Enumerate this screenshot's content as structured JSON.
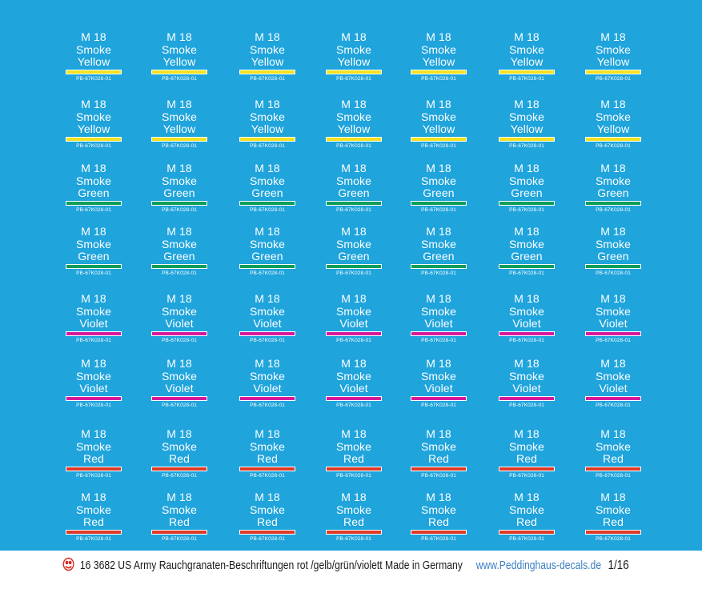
{
  "decal_sheet": {
    "background_color": "#1fa4dc",
    "text_color": "#ffffff",
    "columns_per_row": 7,
    "rows": [
      {
        "lines": [
          "M 18",
          "Smoke",
          "Yellow"
        ],
        "bar_color": "#f5e11f",
        "code": "PB-67K028-01"
      },
      {
        "lines": [
          "M 18",
          "Smoke",
          "Yellow"
        ],
        "bar_color": "#f5e11f",
        "code": "PB-67K028-01"
      },
      {
        "lines": [
          "M 18",
          "Smoke",
          "Green"
        ],
        "bar_color": "#0f9e5a",
        "code": "PB-67K028-01"
      },
      {
        "lines": [
          "M 18",
          "Smoke",
          "Green"
        ],
        "bar_color": "#0f9e5a",
        "code": "PB-67K028-01"
      },
      {
        "lines": [
          "M 18",
          "Smoke",
          "Violet"
        ],
        "bar_color": "#d8189a",
        "code": "PB-67K028-01"
      },
      {
        "lines": [
          "M 18",
          "Smoke",
          "Violet"
        ],
        "bar_color": "#d8189a",
        "code": "PB-67K028-01"
      },
      {
        "lines": [
          "M 18",
          "Smoke",
          "Red"
        ],
        "bar_color": "#e03a28",
        "code": "PB-67K028-01"
      },
      {
        "lines": [
          "M 18",
          "Smoke",
          "Red"
        ],
        "bar_color": "#e03a28",
        "code": "PB-67K028-01"
      }
    ]
  },
  "footer": {
    "logo_icon": "peddinghaus-logo-icon",
    "logo_color": "#d92b1f",
    "title": "16 3682 US Army Rauchgranaten-Beschriftungen rot /gelb/grün/violett  Made in Germany",
    "website": "www.Peddinghaus-decals.de",
    "website_color": "#3c7fc4",
    "scale": "1/16"
  }
}
